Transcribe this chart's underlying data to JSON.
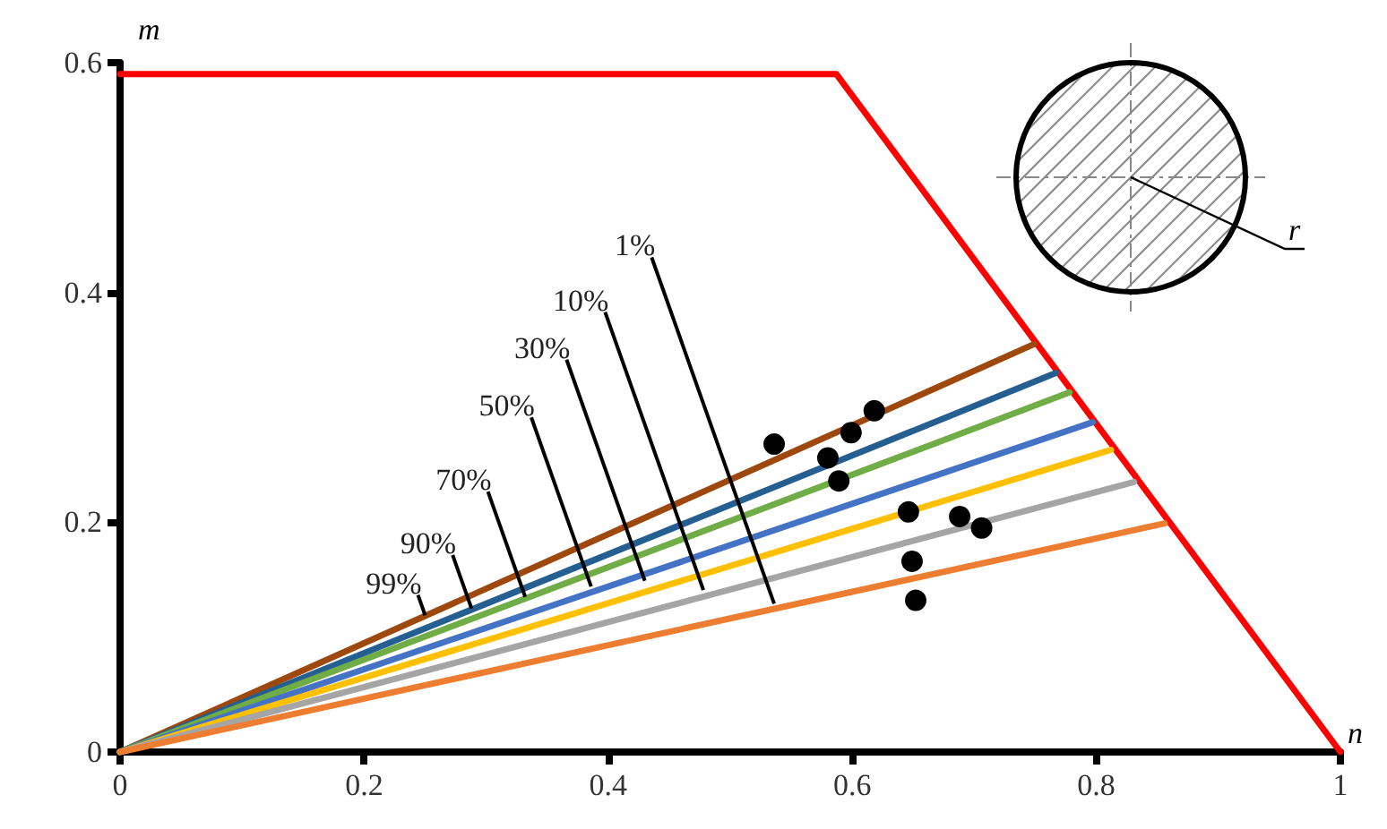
{
  "chart_data": {
    "type": "line",
    "xlabel": "n",
    "ylabel": "m",
    "xlim": [
      0,
      1
    ],
    "xticks": [
      0,
      0.2,
      0.4,
      0.6,
      0.8,
      1
    ],
    "ylim": [
      0,
      0.6
    ],
    "yticks": [
      0,
      0.2,
      0.4,
      0.6
    ],
    "grid": false,
    "marker": "none",
    "line_style": "solid",
    "series": [
      {
        "color": "#ff0000",
        "x": [
          0,
          0.587,
          1
        ],
        "values": [
          0.59,
          0.59,
          0
        ]
      },
      {
        "color": "#9e480e",
        "x": [
          0,
          0.749
        ],
        "values": [
          0,
          0.355
        ]
      },
      {
        "color": "#255e91",
        "x": [
          0,
          0.767
        ],
        "values": [
          0,
          0.33
        ]
      },
      {
        "color": "#70ad47",
        "x": [
          0,
          0.778
        ],
        "values": [
          0,
          0.313
        ]
      },
      {
        "color": "#4472c4",
        "x": [
          0,
          0.797
        ],
        "values": [
          0,
          0.287
        ]
      },
      {
        "color": "#ffc000",
        "x": [
          0,
          0.812
        ],
        "values": [
          0,
          0.263
        ]
      },
      {
        "color": "#a5a5a5",
        "x": [
          0,
          0.831
        ],
        "values": [
          0,
          0.235
        ]
      },
      {
        "color": "#ed7d31",
        "x": [
          0,
          0.856
        ],
        "values": [
          0,
          0.199
        ]
      },
      {
        "type": "scatter",
        "marker": "circle",
        "color": "#000000",
        "x": [
          0.536,
          0.618,
          0.599,
          0.58,
          0.589,
          0.646,
          0.688,
          0.706,
          0.649,
          0.652
        ],
        "values": [
          0.268,
          0.297,
          0.278,
          0.256,
          0.236,
          0.209,
          0.205,
          0.195,
          0.166,
          0.132
        ]
      }
    ],
    "annotations": [
      {
        "text": "99%",
        "x": 0.25,
        "y": 0.119
      },
      {
        "text": "90%",
        "x": 0.288,
        "y": 0.125
      },
      {
        "text": "70%",
        "x": 0.332,
        "y": 0.135
      },
      {
        "text": "50%",
        "x": 0.386,
        "y": 0.144
      },
      {
        "text": "30%",
        "x": 0.43,
        "y": 0.149
      },
      {
        "text": "10%",
        "x": 0.478,
        "y": 0.141
      },
      {
        "text": "1%",
        "x": 0.536,
        "y": 0.129
      },
      "r"
    ]
  }
}
